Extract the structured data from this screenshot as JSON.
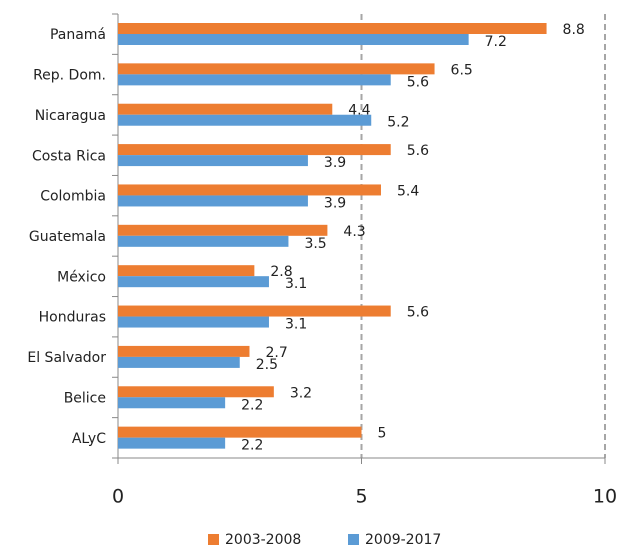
{
  "chart_data": {
    "type": "bar",
    "orientation": "horizontal",
    "categories": [
      "Panamá",
      "Rep. Dom.",
      "Nicaragua",
      "Costa Rica",
      "Colombia",
      "Guatemala",
      "México",
      "Honduras",
      "El Salvador",
      "Belice",
      "ALyC"
    ],
    "series": [
      {
        "name": "2003-2008",
        "color": "#ed7d31",
        "values": [
          8.8,
          6.5,
          4.4,
          5.6,
          5.4,
          4.3,
          2.8,
          5.6,
          2.7,
          3.2,
          5
        ]
      },
      {
        "name": "2009-2017",
        "color": "#5b9bd5",
        "values": [
          7.2,
          5.6,
          5.2,
          3.9,
          3.9,
          3.5,
          3.1,
          3.1,
          2.5,
          2.2,
          2.2
        ]
      }
    ],
    "xlim": [
      0,
      10
    ],
    "xticks": [
      0,
      5,
      10
    ],
    "grid": true,
    "legend": "bottom"
  }
}
